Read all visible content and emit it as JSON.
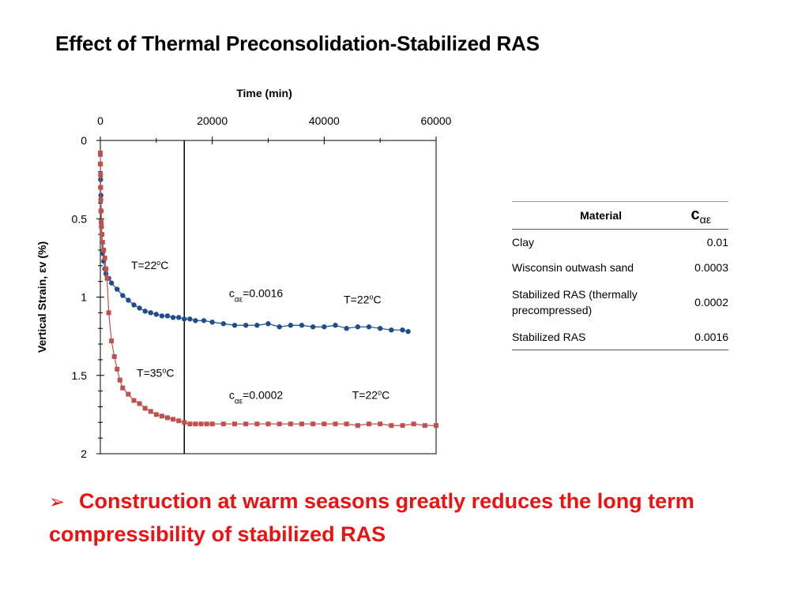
{
  "slide": {
    "title": "Effect of Thermal Preconsolidation-Stabilized RAS",
    "bullet_symbol": "➢",
    "bullet_text": "Construction at warm seasons greatly reduces the long term compressibility of stabilized RAS",
    "bullet_color": "#ee1111"
  },
  "chart_data": {
    "type": "scatter",
    "xlabel": "Time (min)",
    "ylabel": "Vertical Strain, εv (%)",
    "xlim": [
      0,
      60000
    ],
    "ylim": [
      0,
      2
    ],
    "y_inverted": true,
    "x_axis_position": "top",
    "x_ticks": [
      0,
      20000,
      40000,
      60000
    ],
    "y_ticks": [
      0,
      0.5,
      1,
      1.5,
      2
    ],
    "x_tick_labels": [
      "0",
      "20000",
      "40000",
      "60000"
    ],
    "y_tick_labels": [
      "0",
      "0.5",
      "1",
      "1.5",
      "2"
    ],
    "grid": false,
    "legend": "none",
    "vertical_line_x": 15000,
    "series": [
      {
        "color": "#1f4e8c",
        "marker": "circle",
        "x": [
          0,
          50,
          100,
          150,
          200,
          300,
          400,
          600,
          800,
          1000,
          1500,
          2000,
          3000,
          4000,
          5000,
          6000,
          7000,
          8000,
          9000,
          10000,
          11000,
          12000,
          13000,
          14000,
          15000,
          16000,
          17000,
          18500,
          20000,
          22000,
          24000,
          26000,
          28000,
          30000,
          32000,
          34000,
          36000,
          38000,
          40000,
          42000,
          44000,
          46000,
          48000,
          50000,
          52000,
          54000,
          55000
        ],
        "y": [
          0.15,
          0.25,
          0.35,
          0.45,
          0.55,
          0.65,
          0.72,
          0.77,
          0.82,
          0.85,
          0.88,
          0.91,
          0.95,
          0.99,
          1.02,
          1.05,
          1.07,
          1.09,
          1.1,
          1.11,
          1.12,
          1.12,
          1.13,
          1.13,
          1.14,
          1.14,
          1.15,
          1.15,
          1.16,
          1.17,
          1.18,
          1.18,
          1.18,
          1.17,
          1.19,
          1.18,
          1.18,
          1.19,
          1.19,
          1.18,
          1.2,
          1.19,
          1.19,
          1.2,
          1.21,
          1.21,
          1.22
        ]
      },
      {
        "color": "#c0504d",
        "marker": "square",
        "x": [
          0,
          20,
          40,
          60,
          80,
          100,
          150,
          200,
          300,
          400,
          600,
          800,
          1000,
          1200,
          1500,
          2000,
          2500,
          3000,
          3500,
          4000,
          5000,
          6000,
          7000,
          8000,
          9000,
          10000,
          11000,
          12000,
          13000,
          14000,
          15000,
          16000,
          17000,
          18000,
          19000,
          20000,
          22000,
          24000,
          26000,
          28000,
          30000,
          32000,
          34000,
          36000,
          38000,
          40000,
          42000,
          44000,
          46000,
          48000,
          50000,
          52000,
          54000,
          56000,
          58000,
          60000
        ],
        "y": [
          0.08,
          0.15,
          0.22,
          0.3,
          0.38,
          0.45,
          0.52,
          0.55,
          0.6,
          0.65,
          0.7,
          0.75,
          0.82,
          0.88,
          1.1,
          1.28,
          1.38,
          1.46,
          1.53,
          1.58,
          1.62,
          1.66,
          1.68,
          1.71,
          1.73,
          1.75,
          1.76,
          1.77,
          1.78,
          1.79,
          1.8,
          1.81,
          1.81,
          1.81,
          1.81,
          1.81,
          1.81,
          1.81,
          1.81,
          1.81,
          1.81,
          1.81,
          1.81,
          1.81,
          1.81,
          1.81,
          1.81,
          1.81,
          1.82,
          1.81,
          1.81,
          1.82,
          1.82,
          1.81,
          1.82,
          1.82
        ]
      }
    ],
    "annotations": [
      {
        "id": "t22-top-left",
        "text": "T=22",
        "sup": "o",
        "unit": "C",
        "x": 5500,
        "y": 0.82
      },
      {
        "id": "coef-top",
        "text": "c",
        "sub": "αε",
        "value": "=0.0016",
        "x": 23000,
        "y": 1.0
      },
      {
        "id": "t22-top-right",
        "text": "T=22",
        "sup": "o",
        "unit": "C",
        "x": 43500,
        "y": 1.04
      },
      {
        "id": "t35-bottom",
        "text": "T=35",
        "sup": "o",
        "unit": "C",
        "x": 6500,
        "y": 1.51
      },
      {
        "id": "coef-bottom",
        "text": "c",
        "sub": "αε",
        "value": "=0.0002",
        "x": 23000,
        "y": 1.65
      },
      {
        "id": "t22-bottom",
        "text": "T=22",
        "sup": "o",
        "unit": "C",
        "x": 45000,
        "y": 1.65
      }
    ]
  },
  "table": {
    "header": {
      "material": "Material",
      "coef_main": "c",
      "coef_sub": "αε"
    },
    "rows": [
      {
        "material": "Clay",
        "value": "0.01"
      },
      {
        "material": "Wisconsin outwash sand",
        "value": "0.0003"
      },
      {
        "material": "Stabilized RAS (thermally precompressed)",
        "value": "0.0002"
      },
      {
        "material": "Stabilized RAS",
        "value": "0.0016"
      }
    ]
  }
}
